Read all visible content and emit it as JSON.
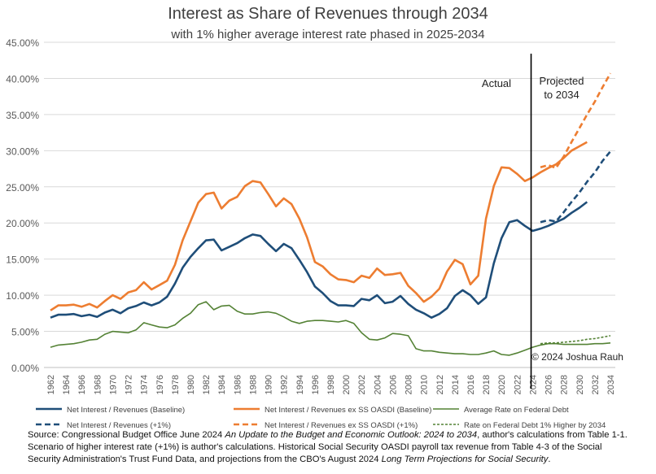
{
  "chart_data": {
    "type": "line",
    "title": "Interest as Share of Revenues through 2034",
    "subtitle": "with 1% higher average interest rate phased in 2025-2034",
    "ylim": [
      0,
      45
    ],
    "yticks": [
      "0.00%",
      "5.00%",
      "10.00%",
      "15.00%",
      "20.00%",
      "25.00%",
      "30.00%",
      "35.00%",
      "40.00%",
      "45.00%"
    ],
    "xtick_labels": [
      "1962",
      "1964",
      "1966",
      "1968",
      "1970",
      "1972",
      "1974",
      "1976",
      "1978",
      "1980",
      "1982",
      "1984",
      "1986",
      "1988",
      "1990",
      "1992",
      "1994",
      "1996",
      "1998",
      "2000",
      "2002",
      "2004",
      "2006",
      "2008",
      "2010",
      "2012",
      "2014",
      "2016",
      "2018",
      "2020",
      "2022",
      "2024",
      "2026",
      "2028",
      "2030",
      "2032",
      "2034"
    ],
    "xlim": [
      1962,
      2034
    ],
    "divider_year": 2023.8,
    "annotations": {
      "actual": "Actual",
      "projected_line1": "Projected",
      "projected_line2": "to 2034",
      "copyright": "© 2024 Joshua Rauh"
    },
    "colors": {
      "navy": "#1f4e79",
      "orange": "#ed7d31",
      "green": "#548235"
    },
    "series": [
      {
        "name": "Net Interest / Revenues (Baseline)",
        "color": "#1f4e79",
        "dash": false,
        "start": 1962,
        "values": [
          6.9,
          7.3,
          7.3,
          7.4,
          7.1,
          7.3,
          7.0,
          7.6,
          8.0,
          7.5,
          8.2,
          8.5,
          9.0,
          8.6,
          9.0,
          9.8,
          11.6,
          13.8,
          15.3,
          16.5,
          17.6,
          17.7,
          16.2,
          16.7,
          17.2,
          17.9,
          18.4,
          18.2,
          17.1,
          16.1,
          17.1,
          16.5,
          14.9,
          13.2,
          11.2,
          10.3,
          9.2,
          8.6,
          8.6,
          8.5,
          9.5,
          9.3,
          10.0,
          8.9,
          9.1,
          9.9,
          8.8,
          8.0,
          7.5,
          6.9,
          7.4,
          8.2,
          9.9,
          10.7,
          10.0,
          8.8,
          9.7,
          14.4,
          17.9,
          20.1,
          20.4,
          19.6,
          18.9,
          19.2,
          19.6,
          20.1,
          20.6,
          21.4,
          22.1,
          22.9
        ]
      },
      {
        "name": "Net Interest / Revenues ex SS OASDI (Baseline)",
        "color": "#ed7d31",
        "dash": false,
        "start": 1962,
        "values": [
          7.9,
          8.6,
          8.6,
          8.7,
          8.4,
          8.8,
          8.3,
          9.2,
          10.0,
          9.5,
          10.4,
          10.7,
          11.8,
          10.8,
          11.4,
          12.0,
          14.2,
          17.6,
          20.2,
          22.8,
          24.0,
          24.2,
          22.0,
          23.1,
          23.6,
          25.1,
          25.8,
          25.6,
          24.0,
          22.3,
          23.4,
          22.6,
          20.6,
          18.0,
          14.6,
          14.0,
          12.9,
          12.2,
          12.1,
          11.8,
          12.7,
          12.4,
          13.7,
          12.8,
          12.9,
          13.1,
          11.3,
          10.3,
          9.1,
          9.8,
          10.9,
          13.3,
          14.9,
          14.3,
          11.5,
          12.7,
          20.6,
          25.1,
          27.7,
          27.6,
          26.8,
          25.8,
          26.3,
          27.0,
          27.6,
          28.1,
          29.0,
          30.0,
          30.6,
          31.2
        ]
      },
      {
        "name": "Average Rate on Federal Debt",
        "color": "#548235",
        "dash": false,
        "start": 1962,
        "values": [
          2.8,
          3.1,
          3.2,
          3.3,
          3.5,
          3.8,
          3.9,
          4.6,
          5.0,
          4.9,
          4.8,
          5.2,
          6.2,
          5.9,
          5.6,
          5.5,
          5.9,
          6.8,
          7.5,
          8.7,
          9.1,
          8.0,
          8.5,
          8.6,
          7.8,
          7.4,
          7.4,
          7.6,
          7.7,
          7.5,
          7.0,
          6.4,
          6.1,
          6.4,
          6.5,
          6.5,
          6.4,
          6.3,
          6.5,
          6.1,
          4.8,
          3.9,
          3.8,
          4.1,
          4.7,
          4.6,
          4.4,
          2.6,
          2.3,
          2.3,
          2.1,
          2.0,
          1.9,
          1.9,
          1.8,
          1.8,
          2.0,
          2.3,
          1.8,
          1.7,
          2.0,
          2.4,
          2.8,
          3.1,
          3.3,
          3.3,
          3.2,
          3.2,
          3.2,
          3.2,
          3.3,
          3.3,
          3.4
        ]
      },
      {
        "name": "Net Interest / Revenues (+1%)",
        "color": "#1f4e79",
        "dash": true,
        "start": 2025,
        "values": [
          20.1,
          20.4,
          20.2,
          21.5,
          22.9,
          24.2,
          25.7,
          27.0,
          28.6,
          29.9
        ]
      },
      {
        "name": "Net Interest / Revenues ex SS OASDI (+1%)",
        "color": "#ed7d31",
        "dash": true,
        "start": 2025,
        "values": [
          27.7,
          28.0,
          27.6,
          29.2,
          31.2,
          33.1,
          35.0,
          36.8,
          38.8,
          40.7
        ]
      },
      {
        "name": "Rate on Federal Debt 1% Higher by 2034",
        "color": "#548235",
        "dash": true,
        "start": 2025,
        "values": [
          3.3,
          3.4,
          3.4,
          3.5,
          3.6,
          3.7,
          3.9,
          4.0,
          4.2,
          4.4
        ]
      }
    ]
  },
  "source": {
    "line1_a": "Source: Congressional Budget Office June 2024 ",
    "line1_italic": "An Update to the Budget and Economic Outlook: 2024 to 2034",
    "line1_b": ", author's calculations from Table 1-1.",
    "line2": "Scenario of higher interest rate (+1%) is author's calculations. Historical Social Security OASDI payroll tax revenue from Table 4-3 of the Social",
    "line3_a": "Security Administration's Trust Fund Data, and projections from the CBO's August 2024 ",
    "line3_italic": "Long Term Projections for Social Security",
    "line3_b": "."
  }
}
